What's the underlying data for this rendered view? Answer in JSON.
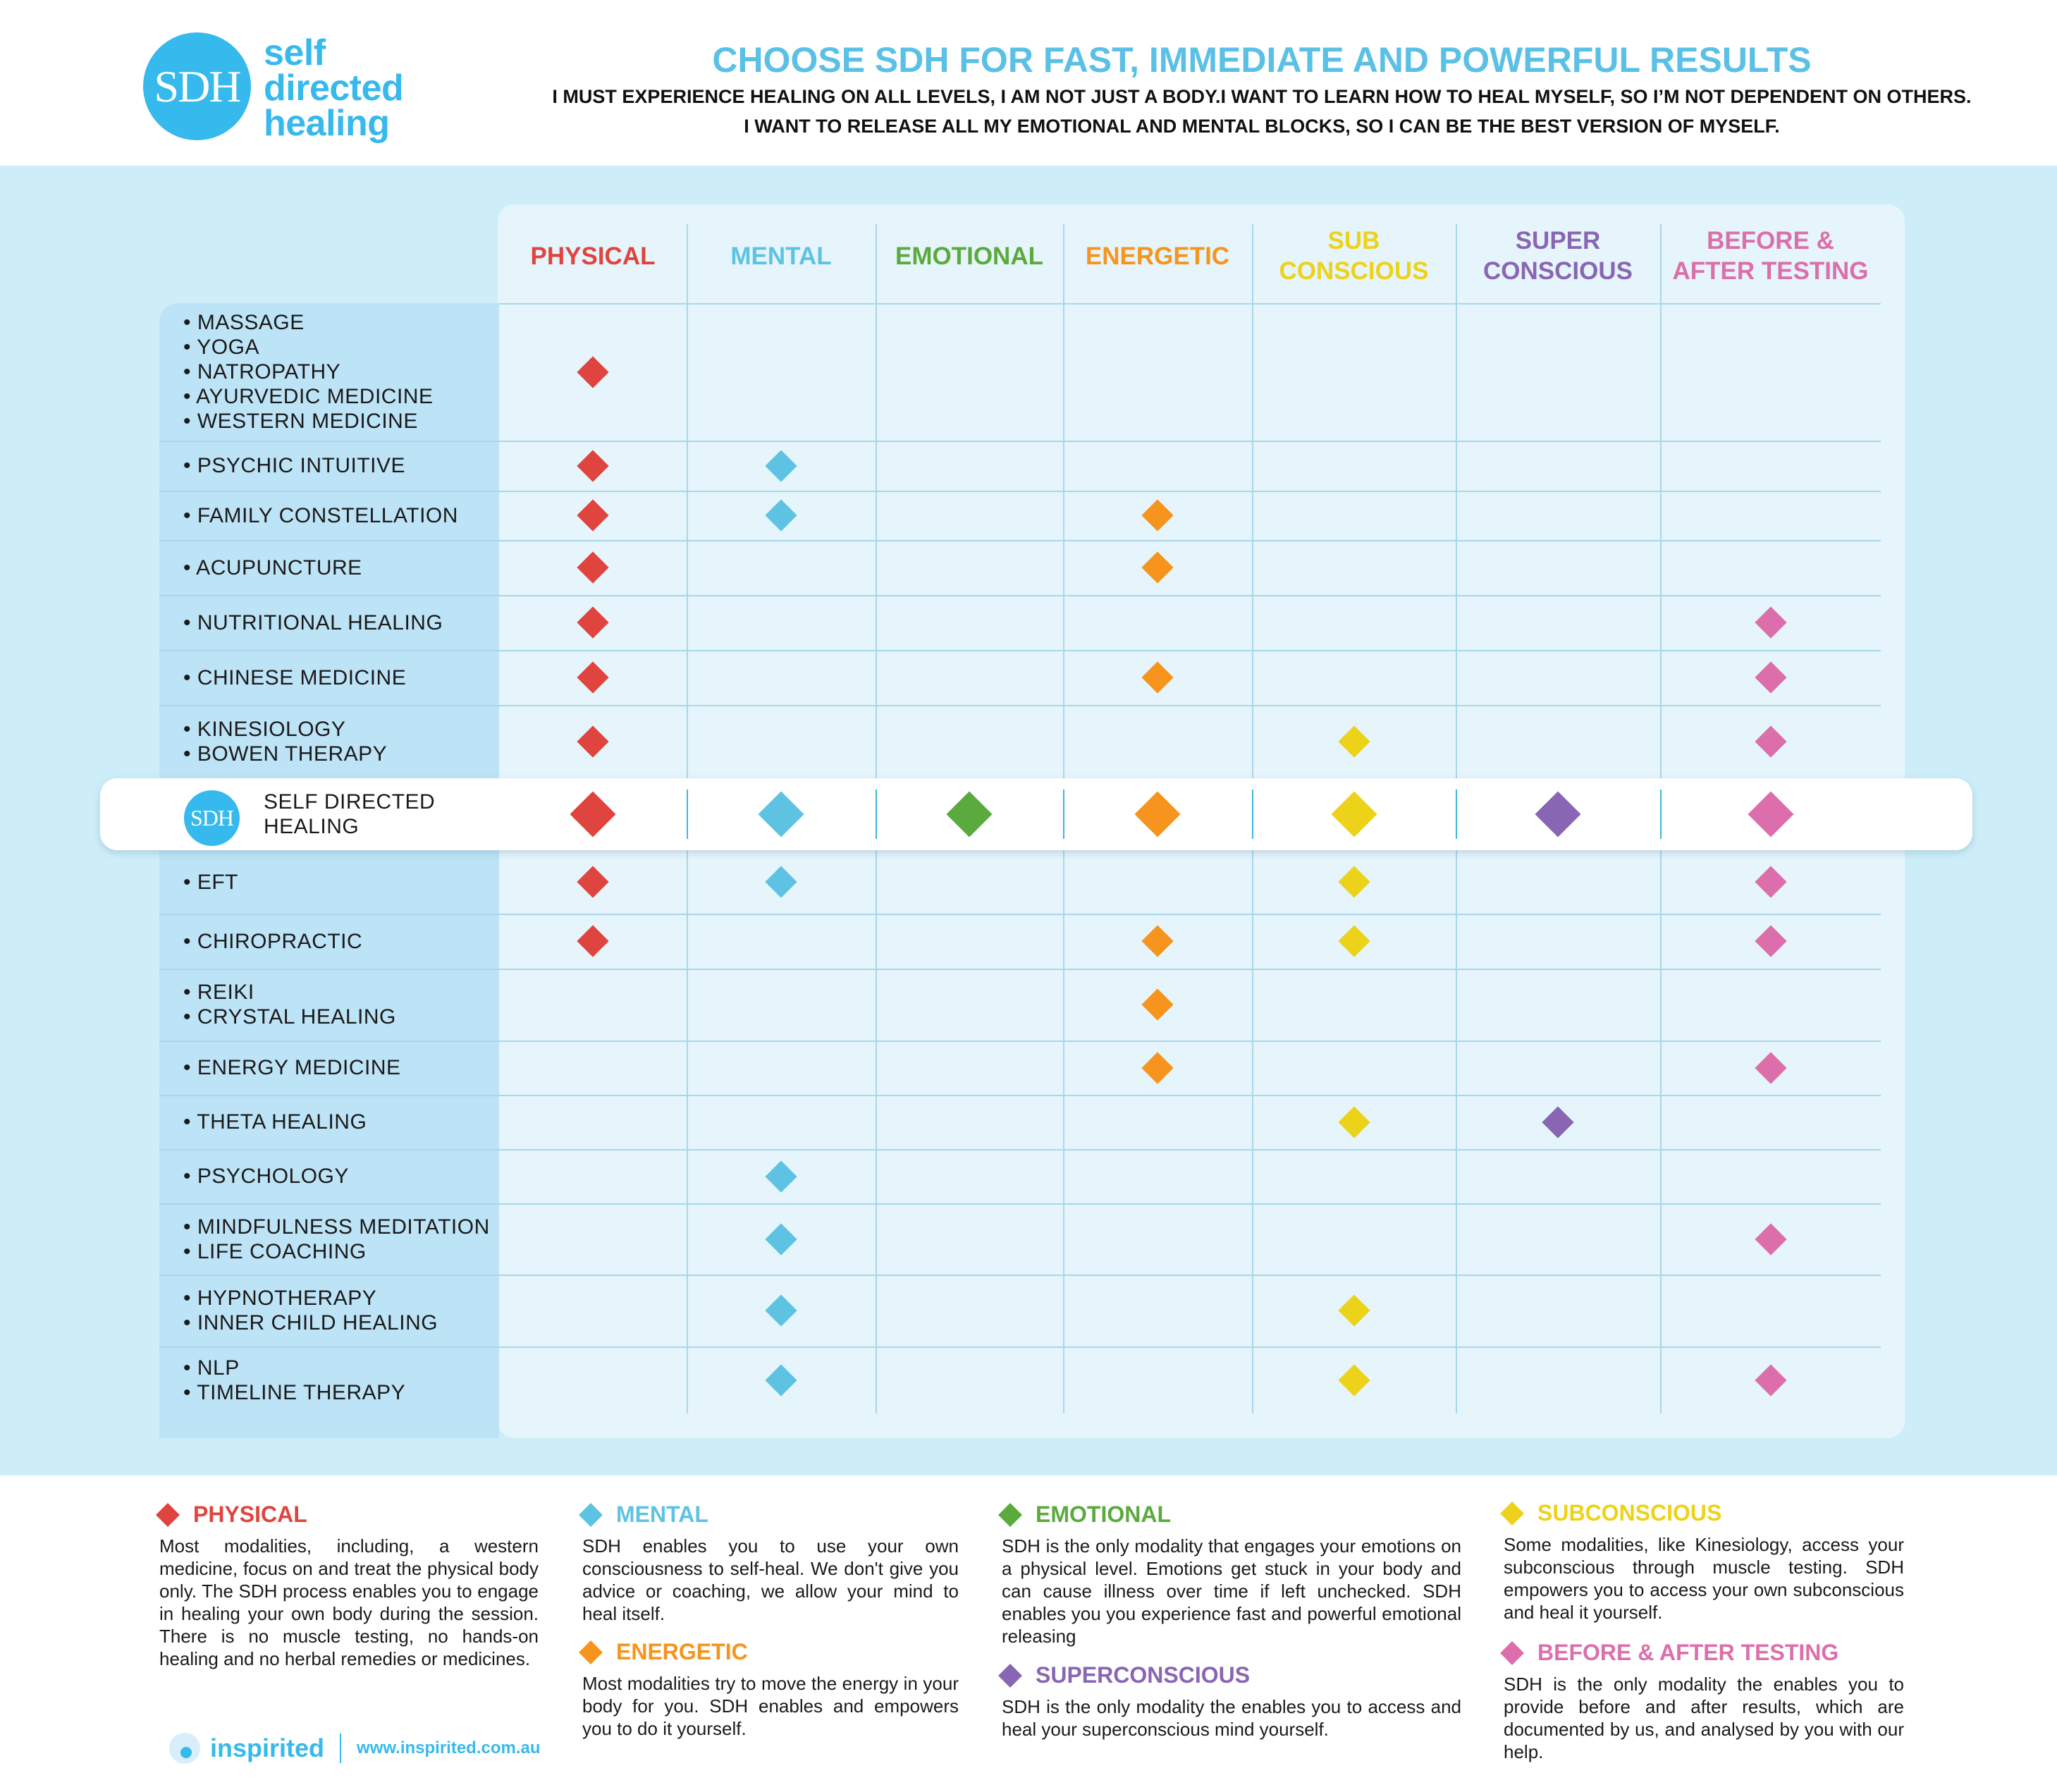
{
  "brand": {
    "logo_text": "SDH",
    "name_lines": [
      "self",
      "directed",
      "healing"
    ]
  },
  "header": {
    "headline": "CHOOSE SDH FOR FAST, IMMEDIATE AND POWERFUL RESULTS",
    "line1": "I MUST EXPERIENCE HEALING ON ALL LEVELS, I AM NOT JUST A BODY.I WANT TO LEARN HOW TO HEAL MYSELF, SO I’M NOT DEPENDENT ON OTHERS.",
    "line2": "I WANT TO RELEASE ALL MY EMOTIONAL AND MENTAL BLOCKS, SO I CAN BE THE BEST VERSION OF MYSELF."
  },
  "columns": [
    {
      "key": "physical",
      "label": [
        "PHYSICAL"
      ],
      "color": "#e0443e"
    },
    {
      "key": "mental",
      "label": [
        "MENTAL"
      ],
      "color": "#5ec3e3"
    },
    {
      "key": "emotional",
      "label": [
        "EMOTIONAL"
      ],
      "color": "#5aaa3d"
    },
    {
      "key": "energetic",
      "label": [
        "ENERGETIC"
      ],
      "color": "#f7941d"
    },
    {
      "key": "subconscious",
      "label": [
        "SUB",
        "CONSCIOUS"
      ],
      "color": "#edd21a"
    },
    {
      "key": "superconscious",
      "label": [
        "SUPER",
        "CONSCIOUS"
      ],
      "color": "#8866b3"
    },
    {
      "key": "testing",
      "label": [
        "BEFORE &",
        "AFTER TESTING"
      ],
      "color": "#dc6fab"
    }
  ],
  "rows": [
    {
      "items": [
        "• MASSAGE",
        "• YOGA",
        "• NATROPATHY",
        "• AYURVEDIC MEDICINE",
        "• WESTERN MEDICINE"
      ],
      "marks": [
        1,
        0,
        0,
        0,
        0,
        0,
        0
      ]
    },
    {
      "items": [
        "• PSYCHIC INTUITIVE"
      ],
      "marks": [
        1,
        1,
        0,
        0,
        0,
        0,
        0
      ]
    },
    {
      "items": [
        "• FAMILY CONSTELLATION"
      ],
      "marks": [
        1,
        1,
        0,
        1,
        0,
        0,
        0
      ]
    },
    {
      "items": [
        "• ACUPUNCTURE"
      ],
      "marks": [
        1,
        0,
        0,
        1,
        0,
        0,
        0
      ]
    },
    {
      "items": [
        "• NUTRITIONAL HEALING"
      ],
      "marks": [
        1,
        0,
        0,
        0,
        0,
        0,
        1
      ]
    },
    {
      "items": [
        "• CHINESE MEDICINE"
      ],
      "marks": [
        1,
        0,
        0,
        1,
        0,
        0,
        1
      ]
    },
    {
      "items": [
        "• KINESIOLOGY",
        "• BOWEN THERAPY"
      ],
      "marks": [
        1,
        0,
        0,
        0,
        1,
        0,
        1
      ]
    },
    {
      "items": [
        "SELF DIRECTED",
        "HEALING"
      ],
      "marks": [
        1,
        1,
        1,
        1,
        1,
        1,
        1
      ],
      "highlight": true,
      "logo_text": "SDH"
    },
    {
      "items": [
        "• EFT"
      ],
      "marks": [
        1,
        1,
        0,
        0,
        1,
        0,
        1
      ]
    },
    {
      "items": [
        "• CHIROPRACTIC"
      ],
      "marks": [
        1,
        0,
        0,
        1,
        1,
        0,
        1
      ]
    },
    {
      "items": [
        "• REIKI",
        "• CRYSTAL HEALING"
      ],
      "marks": [
        0,
        0,
        0,
        1,
        0,
        0,
        0
      ]
    },
    {
      "items": [
        "• ENERGY MEDICINE"
      ],
      "marks": [
        0,
        0,
        0,
        1,
        0,
        0,
        1
      ]
    },
    {
      "items": [
        "• THETA HEALING"
      ],
      "marks": [
        0,
        0,
        0,
        0,
        1,
        1,
        0
      ]
    },
    {
      "items": [
        "• PSYCHOLOGY"
      ],
      "marks": [
        0,
        1,
        0,
        0,
        0,
        0,
        0
      ]
    },
    {
      "items": [
        "• MINDFULNESS MEDITATION",
        "• LIFE COACHING"
      ],
      "marks": [
        0,
        1,
        0,
        0,
        0,
        0,
        1
      ]
    },
    {
      "items": [
        "• HYPNOTHERAPY",
        "• INNER CHILD HEALING"
      ],
      "marks": [
        0,
        1,
        0,
        0,
        1,
        0,
        0
      ]
    },
    {
      "items": [
        "• NLP",
        "• TIMELINE THERAPY"
      ],
      "marks": [
        0,
        1,
        0,
        0,
        1,
        0,
        1
      ]
    }
  ],
  "legend": [
    {
      "title": "PHYSICAL",
      "color": "#e0443e",
      "text": "Most modalities, including, a western medicine, focus on and treat the physical body only. The SDH process enables you to engage in healing your own body during the session. There is no muscle testing, no hands-on healing and no herbal remedies or medicines."
    },
    {
      "title": "MENTAL",
      "color": "#5ec3e3",
      "text": "SDH enables you to use your own consciousness to self-heal. We don't give you advice or coaching, we allow your mind to heal itself."
    },
    {
      "title": "ENERGETIC",
      "color": "#f7941d",
      "text": "Most modalities try to move the energy in your body for you. SDH enables and empowers you to do it yourself."
    },
    {
      "title": "EMOTIONAL",
      "color": "#5aaa3d",
      "text": "SDH is the only modality that engages your emotions on a physical level. Emotions get stuck in your body and can cause illness over time if left unchecked. SDH enables you you experience fast and powerful emotional releasing"
    },
    {
      "title": "SUPERCONSCIOUS",
      "color": "#8866b3",
      "text": "SDH is the only modality the enables you to access and heal your superconscious mind yourself."
    },
    {
      "title": "SUBCONSCIOUS",
      "color": "#edd21a",
      "text": "Some modalities, like Kinesiology, access your  subconscious through muscle testing. SDH empowers you to access your own subconscious and heal it yourself."
    },
    {
      "title": "BEFORE & AFTER TESTING",
      "color": "#dc6fab",
      "text": "SDH is the only modality the enables you to provide before and after results, which are documented by us, and analysed by you with our help."
    }
  ],
  "footer": {
    "name": "inspirited",
    "url": "www.inspirited.com.au"
  }
}
